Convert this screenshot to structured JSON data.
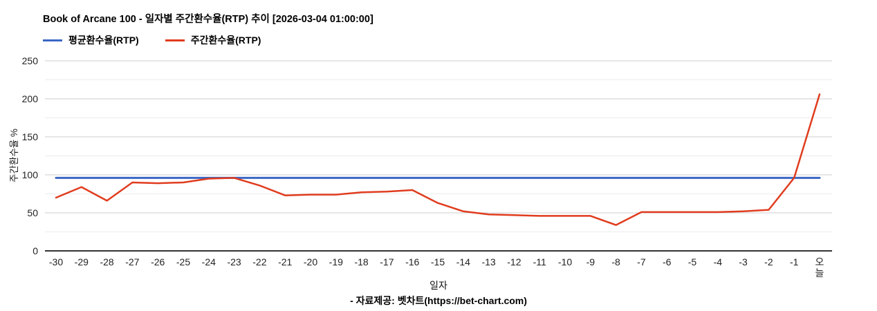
{
  "title": "Book of Arcane 100 - 일자별 주간환수율(RTP) 추이 [2026-03-04 01:00:00]",
  "legend": [
    {
      "label": "평균환수율(RTP)",
      "color": "#3B67C5"
    },
    {
      "label": "주간환수율(RTP)",
      "color": "#E03C1E"
    }
  ],
  "footer": {
    "xlabel": "일자",
    "attribution": "- 자료제공: 벳차트(https://bet-chart.com)"
  },
  "colors": {
    "grid_major": "#cccccc",
    "grid_minor": "#ebebeb",
    "axis_line": "#333333",
    "tick_text": "#222222"
  },
  "chart_data": {
    "type": "line",
    "title": "Book of Arcane 100 - 일자별 주간환수율(RTP) 추이 [2026-03-04 01:00:00]",
    "categories": [
      "-30",
      "-29",
      "-28",
      "-27",
      "-26",
      "-25",
      "-24",
      "-23",
      "-22",
      "-21",
      "-20",
      "-19",
      "-18",
      "-17",
      "-16",
      "-15",
      "-14",
      "-13",
      "-12",
      "-11",
      "-10",
      "-9",
      "-8",
      "-7",
      "-6",
      "-5",
      "-4",
      "-3",
      "-2",
      "-1",
      "오늘"
    ],
    "series": [
      {
        "name": "평균환수율(RTP)",
        "color": "#3B67C5",
        "values": [
          96,
          96,
          96,
          96,
          96,
          96,
          96,
          96,
          96,
          96,
          96,
          96,
          96,
          96,
          96,
          96,
          96,
          96,
          96,
          96,
          96,
          96,
          96,
          96,
          96,
          96,
          96,
          96,
          96,
          96,
          96
        ]
      },
      {
        "name": "주간환수율(RTP)",
        "color": "#E03C1E",
        "values": [
          70,
          84,
          66,
          90,
          89,
          90,
          95,
          96,
          86,
          73,
          74,
          74,
          77,
          78,
          80,
          63,
          52,
          48,
          47,
          46,
          46,
          46,
          34,
          51,
          51,
          51,
          51,
          52,
          54,
          96,
          206
        ]
      }
    ],
    "xlabel": "일자",
    "ylabel": "주간환수율 %",
    "ylim": [
      0,
      250
    ],
    "yticks": [
      0,
      50,
      100,
      150,
      200,
      250
    ],
    "minor_yticks": [
      25,
      75,
      125,
      175,
      225
    ],
    "grid": true,
    "legend_position": "top-left"
  }
}
